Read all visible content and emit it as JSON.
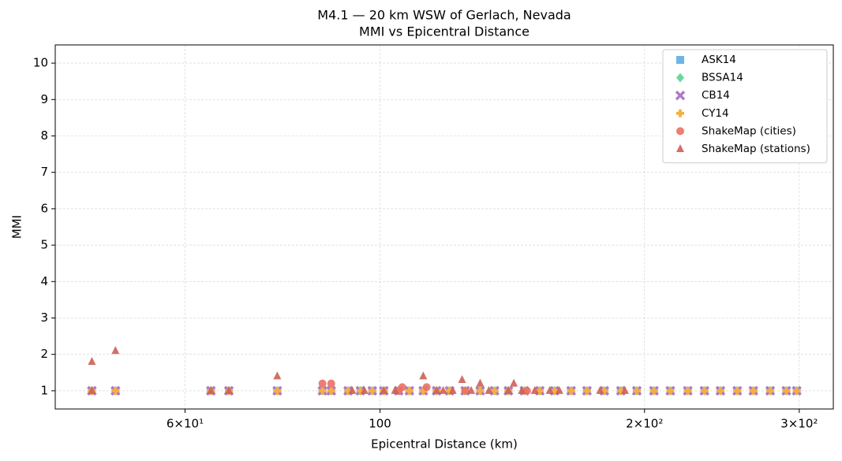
{
  "chart_data": {
    "type": "scatter",
    "title": "M4.1 — 20 km WSW of Gerlach, Nevada",
    "subtitle": "MMI vs Epicentral Distance",
    "x_label": "Epicentral Distance (km)",
    "y_label": "MMI",
    "x_scale": "log",
    "grid": true,
    "legend": "upper right",
    "xlim": [
      42.7,
      328
    ],
    "ylim": [
      0.5,
      10.5
    ],
    "xticks": [
      {
        "value": 60,
        "label": "6×10¹"
      },
      100,
      {
        "value": 200,
        "label": "2×10²"
      },
      {
        "value": 300,
        "label": "3×10²"
      }
    ],
    "yticks": [
      1,
      2,
      3,
      4,
      5,
      6,
      7,
      8,
      9,
      10
    ],
    "series": [
      {
        "name": "ASK14",
        "color": "#5dade2",
        "marker": "square",
        "x": [
          47,
          50,
          64.2,
          67.3,
          76.4,
          86,
          88,
          92,
          95,
          98,
          101,
          105,
          108,
          112,
          116,
          120,
          125,
          130,
          135,
          140,
          146,
          152,
          158,
          165,
          172,
          180,
          188,
          196,
          205,
          214,
          224,
          234,
          244,
          255,
          266,
          278,
          290,
          298
        ],
        "values": [
          1,
          1,
          1,
          1,
          1,
          1,
          1,
          1,
          1,
          1,
          1,
          1,
          1,
          1,
          1,
          1,
          1,
          1,
          1,
          1,
          1,
          1,
          1,
          1,
          1,
          1,
          1,
          1,
          1,
          1,
          1,
          1,
          1,
          1,
          1,
          1,
          1,
          1
        ]
      },
      {
        "name": "BSSA14",
        "color": "#58d68d",
        "marker": "diamond",
        "x": [
          47,
          50,
          64.2,
          67.3,
          76.4,
          86,
          88,
          92,
          95,
          98,
          101,
          105,
          108,
          112,
          116,
          120,
          125,
          130,
          135,
          140,
          146,
          152,
          158,
          165,
          172,
          180,
          188,
          196,
          205,
          214,
          224,
          234,
          244,
          255,
          266,
          278,
          290,
          298
        ],
        "values": [
          1,
          1,
          1,
          1,
          1,
          1,
          1,
          1,
          1,
          1,
          1,
          1,
          1,
          1,
          1,
          1,
          1,
          1,
          1,
          1,
          1,
          1,
          1,
          1,
          1,
          1,
          1,
          1,
          1,
          1,
          1,
          1,
          1,
          1,
          1,
          1,
          1,
          1
        ]
      },
      {
        "name": "CB14",
        "color": "#af7ac5",
        "marker": "x",
        "x": [
          47,
          50,
          64.2,
          67.3,
          76.4,
          86,
          88,
          92,
          95,
          98,
          101,
          105,
          108,
          112,
          116,
          120,
          125,
          130,
          135,
          140,
          146,
          152,
          158,
          165,
          172,
          180,
          188,
          196,
          205,
          214,
          224,
          234,
          244,
          255,
          266,
          278,
          290,
          298
        ],
        "values": [
          1,
          1,
          1,
          1,
          1,
          1,
          1,
          1,
          1,
          1,
          1,
          1,
          1,
          1,
          1,
          1,
          1,
          1,
          1,
          1,
          1,
          1,
          1,
          1,
          1,
          1,
          1,
          1,
          1,
          1,
          1,
          1,
          1,
          1,
          1,
          1,
          1,
          1
        ]
      },
      {
        "name": "CY14",
        "color": "#f5b041",
        "marker": "plus",
        "x": [
          47,
          50,
          64.2,
          67.3,
          76.4,
          86,
          88,
          92,
          95,
          98,
          101,
          105,
          108,
          112,
          116,
          120,
          125,
          130,
          135,
          140,
          146,
          152,
          158,
          165,
          172,
          180,
          188,
          196,
          205,
          214,
          224,
          234,
          244,
          255,
          266,
          278,
          290,
          298
        ],
        "values": [
          1,
          1,
          1,
          1,
          1,
          1,
          1,
          1,
          1,
          1,
          1,
          1,
          1,
          1,
          1,
          1,
          1,
          1,
          1,
          1,
          1,
          1,
          1,
          1,
          1,
          1,
          1,
          1,
          1,
          1,
          1,
          1,
          1,
          1,
          1,
          1,
          1,
          1
        ]
      },
      {
        "name": "ShakeMap (cities)",
        "color": "#ec7063",
        "marker": "circle",
        "x": [
          86,
          88,
          105,
          106,
          113,
          125,
          147
        ],
        "values": [
          1.2,
          1.2,
          1,
          1.1,
          1.1,
          1,
          1
        ]
      },
      {
        "name": "ShakeMap (stations)",
        "color": "#cd6155",
        "marker": "triangle",
        "x": [
          47,
          47,
          50,
          64.2,
          67.3,
          76.4,
          93,
          96,
          101,
          104,
          112,
          116,
          118,
          121,
          124,
          127,
          130,
          133,
          140,
          142,
          145,
          150,
          156,
          160,
          178,
          190
        ],
        "values": [
          1.8,
          1,
          2.1,
          1,
          1,
          1.4,
          1,
          1,
          1,
          1,
          1.4,
          1,
          1,
          1,
          1.3,
          1,
          1.2,
          1,
          1,
          1.2,
          1,
          1,
          1,
          1,
          1,
          1
        ]
      }
    ]
  }
}
